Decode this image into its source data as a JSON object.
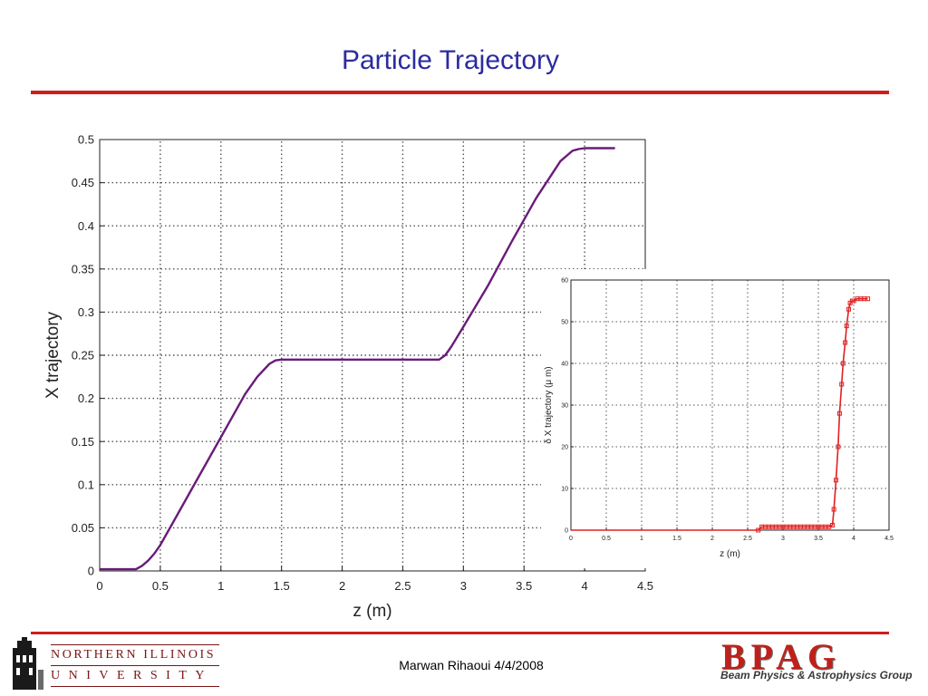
{
  "slide": {
    "title": "Particle Trajectory",
    "footer": "Marwan Rihaoui 4/4/2008",
    "logo_left": {
      "line1": "NORTHERN ILLINOIS",
      "line2": "UNIVERSITY"
    },
    "logo_right": {
      "mark": "BPAG",
      "subtitle": "Beam Physics & Astrophysics Group"
    },
    "colors": {
      "title": "#2b2ba0",
      "rule": "#d11c1c"
    }
  },
  "chart_data": [
    {
      "type": "line",
      "xlabel": "z (m)",
      "ylabel": "X trajectory",
      "xlim": [
        0,
        4.5
      ],
      "ylim": [
        0,
        0.5
      ],
      "xticks": [
        "0",
        "0.5",
        "1",
        "1.5",
        "2",
        "2.5",
        "3",
        "3.5",
        "4",
        "4.5"
      ],
      "yticks": [
        "0",
        "0.05",
        "0.1",
        "0.15",
        "0.2",
        "0.25",
        "0.3",
        "0.35",
        "0.4",
        "0.45",
        "0.5"
      ],
      "grid": true,
      "series": [
        {
          "color": "#6a1b7a",
          "x": [
            0,
            0.3,
            0.35,
            0.4,
            0.45,
            0.5,
            0.6,
            0.8,
            1.0,
            1.2,
            1.3,
            1.4,
            1.45,
            1.5,
            2.0,
            2.5,
            2.8,
            2.85,
            2.9,
            3.0,
            3.2,
            3.4,
            3.6,
            3.8,
            3.9,
            3.95,
            4.0,
            4.25
          ],
          "y": [
            0.002,
            0.002,
            0.006,
            0.012,
            0.02,
            0.03,
            0.055,
            0.105,
            0.155,
            0.205,
            0.225,
            0.24,
            0.244,
            0.245,
            0.245,
            0.245,
            0.245,
            0.25,
            0.26,
            0.283,
            0.33,
            0.382,
            0.432,
            0.475,
            0.487,
            0.489,
            0.49,
            0.49
          ]
        }
      ]
    },
    {
      "type": "scatter",
      "xlabel": "z (m)",
      "ylabel": "δ X trajectory (μ m)",
      "xlim": [
        0,
        4.5
      ],
      "ylim": [
        0,
        60
      ],
      "xticks": [
        "0",
        "0.5",
        "1",
        "1.5",
        "2",
        "2.5",
        "3",
        "3.5",
        "4",
        "4.5"
      ],
      "yticks": [
        "0",
        "10",
        "20",
        "30",
        "40",
        "50",
        "60"
      ],
      "grid": true,
      "series": [
        {
          "color": "#e02020",
          "x": [
            0,
            0.5,
            1.0,
            1.5,
            2.0,
            2.5,
            2.65,
            2.7,
            2.75,
            2.8,
            2.85,
            2.9,
            2.95,
            3.0,
            3.05,
            3.1,
            3.15,
            3.2,
            3.25,
            3.3,
            3.35,
            3.4,
            3.45,
            3.5,
            3.55,
            3.6,
            3.65,
            3.7,
            3.72,
            3.75,
            3.78,
            3.8,
            3.83,
            3.85,
            3.88,
            3.9,
            3.93,
            3.95,
            3.98,
            4.0,
            4.05,
            4.1,
            4.15,
            4.2
          ],
          "y": [
            0,
            0,
            0,
            0,
            0,
            0,
            0,
            0.8,
            0.8,
            0.8,
            0.8,
            0.8,
            0.8,
            0.8,
            0.8,
            0.8,
            0.8,
            0.8,
            0.8,
            0.8,
            0.8,
            0.8,
            0.8,
            0.8,
            0.8,
            0.8,
            0.8,
            1.2,
            5,
            12,
            20,
            28,
            35,
            40,
            45,
            49,
            53,
            54.5,
            55,
            55,
            55.5,
            55.5,
            55.5,
            55.5
          ]
        }
      ]
    }
  ]
}
